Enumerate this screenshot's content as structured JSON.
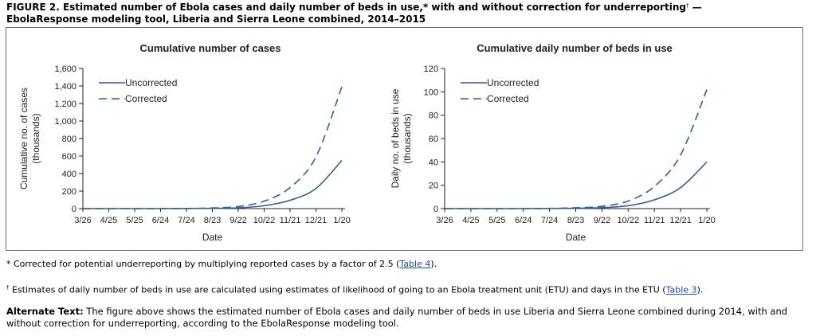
{
  "figure": {
    "title_line1": "FIGURE 2. Estimated number of Ebola cases and daily number of beds in use,* with and without correction for underreporting",
    "title_mark": "†",
    "title_dash": " —",
    "title_line2": "EbolaResponse modeling tool, Liberia and Sierra Leone combined, 2014–2015"
  },
  "colors": {
    "series": "#2f5f9a",
    "axis": "#222222",
    "border": "#6f6f6f",
    "link": "#1b49a6"
  },
  "chart_data": [
    {
      "type": "line",
      "title": "Cumulative number of cases",
      "xlabel": "Date",
      "ylabel": "Cumulative no. of cases",
      "ylabel2": "(thousands)",
      "x": [
        "3/26",
        "4/25",
        "5/25",
        "6/24",
        "7/24",
        "8/23",
        "9/22",
        "10/22",
        "11/21",
        "12/21",
        "1/20"
      ],
      "yticks": [
        "0",
        "200",
        "400",
        "600",
        "800",
        "1,000",
        "1,200",
        "1,400",
        "1,600"
      ],
      "ylim": [
        0,
        1600
      ],
      "legend_position": "top-left",
      "series": [
        {
          "name": "Uncorrected",
          "style": "solid",
          "values": [
            0,
            0,
            0,
            0,
            1,
            3,
            9,
            33,
            95,
            230,
            550
          ]
        },
        {
          "name": "Corrected",
          "style": "dashed",
          "values": [
            0,
            0,
            0,
            0,
            2,
            7,
            24,
            85,
            240,
            590,
            1390
          ]
        }
      ]
    },
    {
      "type": "line",
      "title": "Cumulative daily number of beds in use",
      "xlabel": "Date",
      "ylabel": "Daily no. of beds in use",
      "ylabel2": "(thousands)",
      "x": [
        "3/26",
        "4/25",
        "5/25",
        "6/24",
        "7/24",
        "8/23",
        "9/22",
        "10/22",
        "11/21",
        "12/21",
        "1/20"
      ],
      "yticks": [
        "0",
        "20",
        "40",
        "60",
        "80",
        "100",
        "120"
      ],
      "ylim": [
        0,
        120
      ],
      "legend_position": "top-left",
      "series": [
        {
          "name": "Uncorrected",
          "style": "solid",
          "values": [
            0,
            0,
            0,
            0,
            0.1,
            0.3,
            0.8,
            2.5,
            7.5,
            18,
            40
          ]
        },
        {
          "name": "Corrected",
          "style": "dashed",
          "values": [
            0,
            0,
            0,
            0,
            0.2,
            0.7,
            2,
            6.5,
            19,
            46,
            102
          ]
        }
      ]
    }
  ],
  "notes": {
    "star_text": "* Corrected for potential underreporting by multiplying reported cases by a factor of 2.5 (",
    "star_link": "Table 4",
    "star_end": ").",
    "dagger_mark": "†",
    "dagger_text": " Estimates of daily number of beds in use are calculated using estimates of likelihood of going to an Ebola treatment unit (ETU) and days in the ETU (",
    "dagger_link": "Table 3",
    "dagger_end": ")."
  },
  "alt_text": {
    "label": "Alternate Text:",
    "body": " The figure above shows the estimated number of Ebola cases and daily number of beds in use Liberia and Sierra Leone combined during 2014, with and without correction for underreporting, according to the EbolaResponse modeling tool."
  }
}
